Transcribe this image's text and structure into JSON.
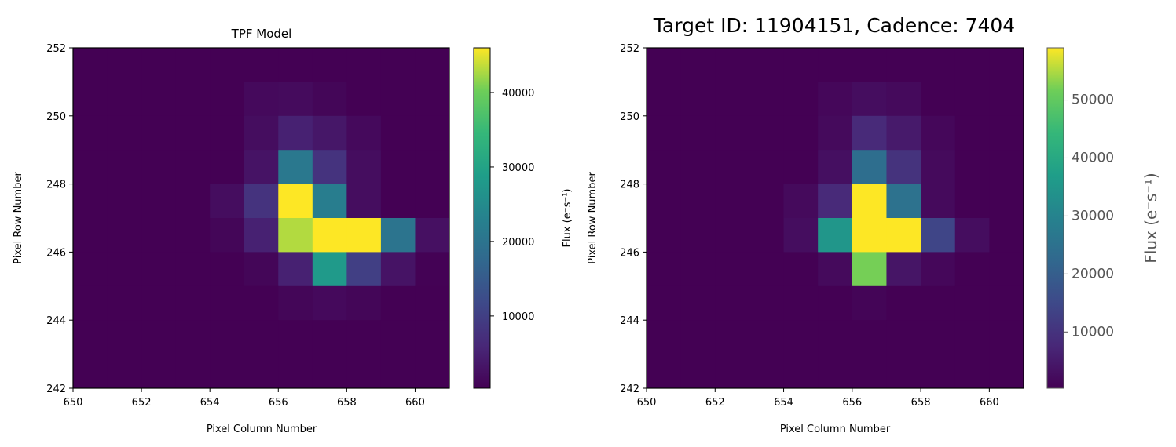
{
  "suptitle": "Target ID: 11904151, Cadence: 7404",
  "chart_data": [
    {
      "type": "heatmap",
      "title": "TPF Model",
      "xlabel": "Pixel Column Number",
      "ylabel": "Pixel Row Number",
      "xlim": [
        650,
        661
      ],
      "ylim": [
        242,
        252
      ],
      "x_ticks": [
        "650",
        "652",
        "654",
        "656",
        "658",
        "660"
      ],
      "y_ticks": [
        "242",
        "244",
        "246",
        "248",
        "250",
        "252"
      ],
      "colormap": "viridis",
      "vmin": 300,
      "vmax": 46000,
      "colorbar_label": "Flux (e⁻s⁻¹)",
      "colorbar_ticks": [
        "10000",
        "20000",
        "30000",
        "40000"
      ],
      "x_start": 650,
      "y_start": 242,
      "rows_top_to_bottom": [
        [
          0,
          0,
          0,
          0,
          0,
          0,
          0,
          0,
          0,
          0,
          0
        ],
        [
          0,
          0,
          0,
          0,
          0,
          1500,
          1800,
          1000,
          0,
          0,
          0
        ],
        [
          0,
          0,
          0,
          0,
          0,
          2000,
          5000,
          3500,
          1500,
          0,
          0
        ],
        [
          0,
          0,
          0,
          0,
          0,
          3000,
          21000,
          8000,
          2000,
          0,
          0
        ],
        [
          0,
          0,
          0,
          0,
          2000,
          8000,
          46000,
          22000,
          2000,
          0,
          0
        ],
        [
          0,
          0,
          0,
          0,
          1000,
          5000,
          43000,
          46000,
          46000,
          20000,
          2500
        ],
        [
          0,
          0,
          0,
          0,
          0,
          1000,
          5000,
          28000,
          10000,
          3000,
          500
        ],
        [
          0,
          0,
          0,
          0,
          0,
          0,
          1000,
          1500,
          1000,
          0,
          0
        ],
        [
          0,
          0,
          0,
          0,
          0,
          0,
          0,
          0,
          0,
          0,
          0
        ],
        [
          0,
          0,
          0,
          0,
          0,
          0,
          0,
          0,
          0,
          0,
          0
        ]
      ]
    },
    {
      "type": "heatmap",
      "title": "",
      "xlabel": "Pixel Column Number",
      "ylabel": "Pixel Row Number",
      "xlim": [
        650,
        661
      ],
      "ylim": [
        242,
        252
      ],
      "x_ticks": [
        "650",
        "652",
        "654",
        "656",
        "658",
        "660"
      ],
      "y_ticks": [
        "242",
        "244",
        "246",
        "248",
        "250",
        "252"
      ],
      "colormap": "viridis",
      "vmin": 300,
      "vmax": 59000,
      "colorbar_label": "Flux (e⁻s⁻¹)",
      "colorbar_ticks": [
        "10000",
        "20000",
        "30000",
        "40000",
        "50000"
      ],
      "x_start": 650,
      "y_start": 242,
      "rows_top_to_bottom": [
        [
          0,
          0,
          0,
          0,
          0,
          0,
          0,
          0,
          0,
          0,
          0
        ],
        [
          0,
          0,
          0,
          0,
          0,
          1500,
          2500,
          2000,
          0,
          0,
          0
        ],
        [
          0,
          0,
          0,
          0,
          0,
          2000,
          8000,
          5000,
          1500,
          0,
          0
        ],
        [
          0,
          0,
          0,
          0,
          0,
          3000,
          24000,
          10000,
          2000,
          0,
          0
        ],
        [
          0,
          0,
          0,
          0,
          2000,
          8000,
          59000,
          25000,
          2000,
          0,
          0
        ],
        [
          0,
          0,
          0,
          0,
          2500,
          35000,
          59000,
          59000,
          14000,
          2500,
          0
        ],
        [
          0,
          0,
          0,
          0,
          0,
          2000,
          52000,
          4000,
          1500,
          0,
          0
        ],
        [
          0,
          0,
          0,
          0,
          0,
          0,
          1000,
          0,
          0,
          0,
          0
        ],
        [
          0,
          0,
          0,
          0,
          0,
          0,
          0,
          0,
          0,
          0,
          0
        ],
        [
          0,
          0,
          0,
          0,
          0,
          0,
          0,
          0,
          0,
          0,
          0
        ]
      ]
    }
  ]
}
